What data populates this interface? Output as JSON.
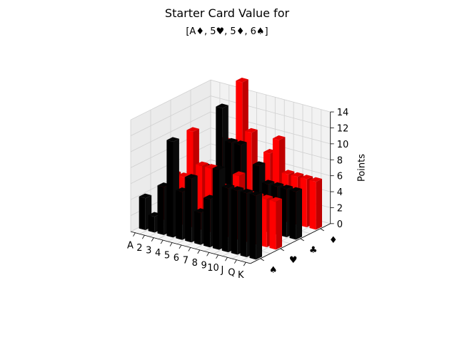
{
  "chart_data": {
    "type": "bar3d",
    "title": "Starter Card Value for",
    "subtitle": "[A♦, 5♥, 5♦, 6♠]",
    "zlabel": "Points",
    "ranks": [
      "A",
      "2",
      "3",
      "4",
      "5",
      "6",
      "7",
      "8",
      "9",
      "10",
      "J",
      "Q",
      "K"
    ],
    "suits": [
      "♠",
      "♥",
      "♣",
      "♦"
    ],
    "zlim": [
      0,
      14
    ],
    "zticks": [
      0,
      2,
      4,
      6,
      8,
      10,
      12,
      14
    ],
    "grid": true,
    "series": [
      {
        "suit": "♠",
        "color": "#000000",
        "values": [
          4,
          2,
          6,
          12,
          6,
          8,
          4,
          6,
          10,
          8,
          8,
          8,
          8
        ]
      },
      {
        "suit": "♥",
        "color": "#ff0000",
        "values": [
          4,
          6,
          6,
          12,
          8,
          8,
          6,
          6,
          8,
          6,
          6,
          6,
          6
        ]
      },
      {
        "suit": "♣",
        "color": "#000000",
        "values": [
          2,
          4,
          6,
          6,
          14,
          10,
          10,
          4,
          8,
          6,
          6,
          6,
          6
        ]
      },
      {
        "suit": "♦",
        "color": "#ff0000",
        "values": [
          4,
          4,
          8,
          8,
          16,
          10,
          6,
          8,
          10,
          6,
          6,
          6,
          6
        ]
      }
    ]
  }
}
